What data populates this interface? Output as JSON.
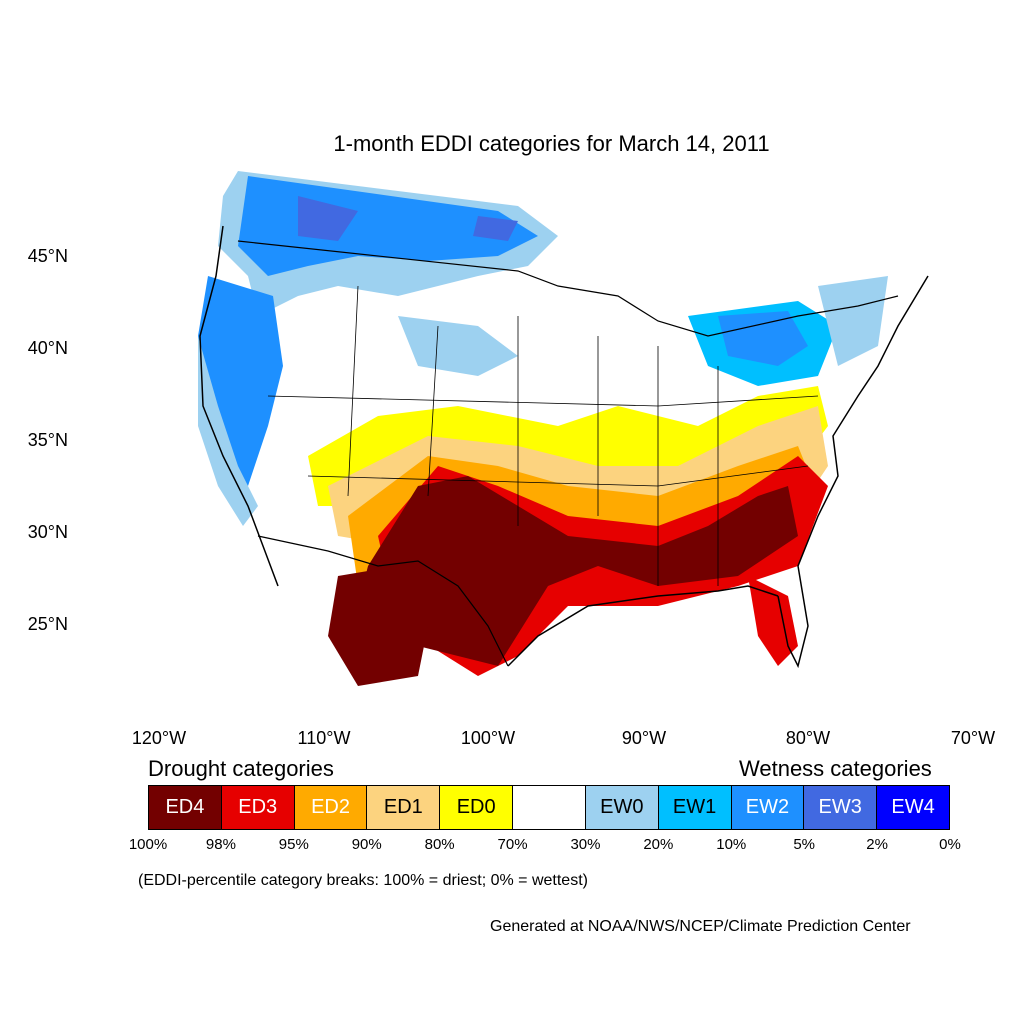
{
  "title": "1-month EDDI categories for March 14, 2011",
  "map": {
    "lat_labels": [
      "45°N",
      "40°N",
      "35°N",
      "30°N",
      "25°N"
    ],
    "lon_labels": [
      "120°W",
      "110°W",
      "100°W",
      "90°W",
      "80°W",
      "70°W"
    ]
  },
  "legend": {
    "drought_heading": "Drought categories",
    "wetness_heading": "Wetness categories",
    "categories": [
      {
        "label": "ED4",
        "color": "#730000",
        "text_color": "#ffffff"
      },
      {
        "label": "ED3",
        "color": "#e60000",
        "text_color": "#ffffff"
      },
      {
        "label": "ED2",
        "color": "#ffaa00",
        "text_color": "#ffffff"
      },
      {
        "label": "ED1",
        "color": "#fcd37f",
        "text_color": "#000000"
      },
      {
        "label": "ED0",
        "color": "#ffff00",
        "text_color": "#000000"
      },
      {
        "label": "",
        "color": "#ffffff",
        "text_color": "#000000"
      },
      {
        "label": "EW0",
        "color": "#9dd1f0",
        "text_color": "#000000"
      },
      {
        "label": "EW1",
        "color": "#00bfff",
        "text_color": "#000000"
      },
      {
        "label": "EW2",
        "color": "#1e90ff",
        "text_color": "#ffffff"
      },
      {
        "label": "EW3",
        "color": "#4169e1",
        "text_color": "#ffffff"
      },
      {
        "label": "EW4",
        "color": "#0000ff",
        "text_color": "#ffffff"
      }
    ],
    "percentiles": [
      "100%",
      "98%",
      "95%",
      "90%",
      "80%",
      "70%",
      "30%",
      "20%",
      "10%",
      "5%",
      "2%",
      "0%"
    ],
    "note": "(EDDI-percentile category breaks: 100% = driest; 0% = wettest)"
  },
  "credit": "Generated at NOAA/NWS/NCEP/Climate Prediction Center"
}
